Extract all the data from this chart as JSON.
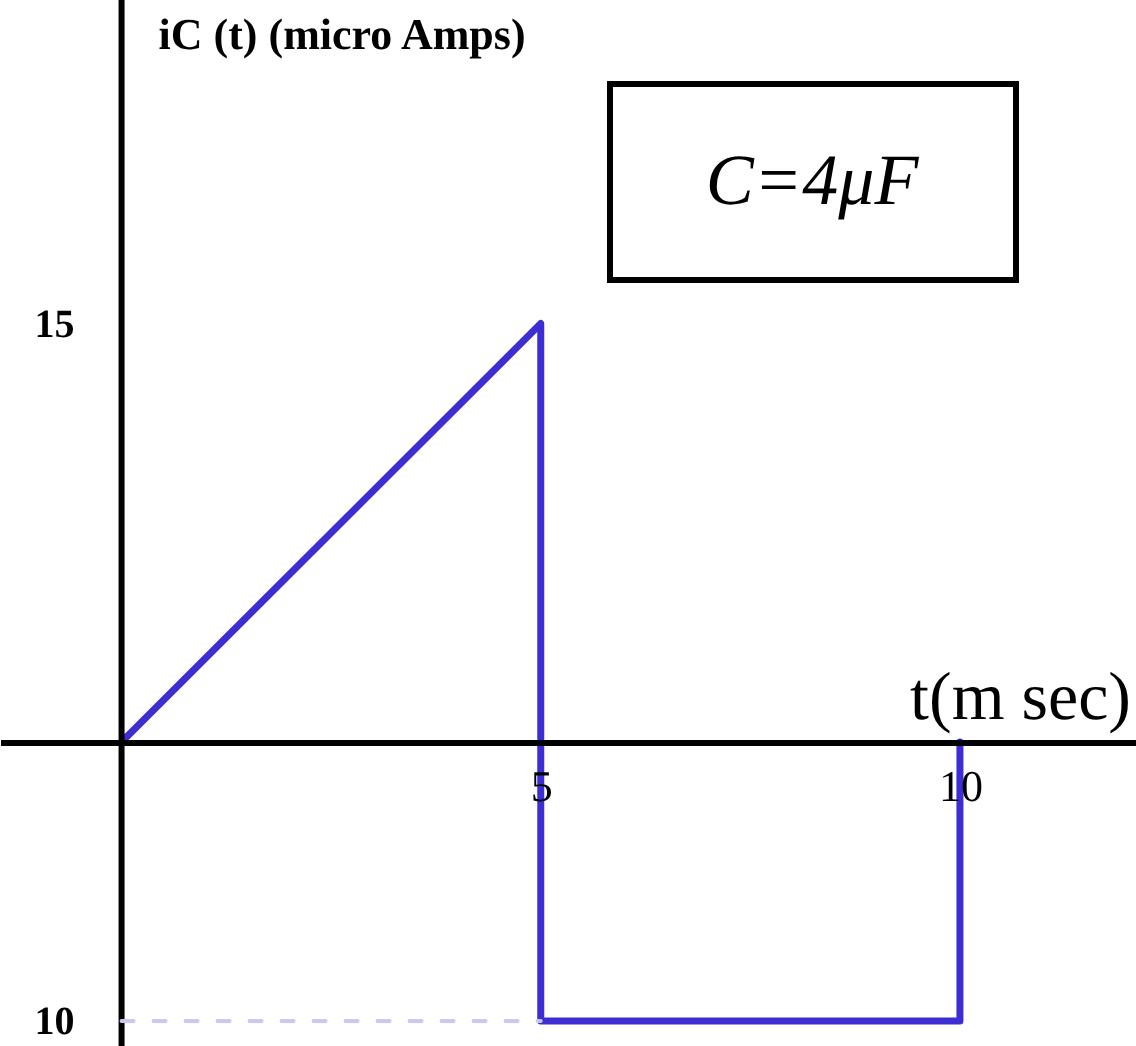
{
  "chart_data": {
    "type": "line",
    "ylabel": "iC (t) (micro Amps)",
    "xlabel": "t(m sec)",
    "annotations": [
      "C=4μF"
    ],
    "xlim": [
      -1.45,
      12.1
    ],
    "ylim": [
      -10.9,
      26.6
    ],
    "xticks": [
      5,
      10
    ],
    "yticks": [
      15,
      {
        "value": -10,
        "label": "10"
      }
    ],
    "ref_lines": [
      {
        "axis": "x",
        "value": 0,
        "color": "#000000"
      }
    ],
    "series": [
      {
        "color": "#3d2ed4",
        "x": [
          0,
          5,
          5,
          10,
          10
        ],
        "values": [
          0,
          15,
          -10,
          -10,
          0
        ]
      },
      {
        "color": "#c8c8f0",
        "x": [
          0,
          5
        ],
        "values": [
          -10,
          -10
        ],
        "line_style": "dashed"
      }
    ]
  }
}
